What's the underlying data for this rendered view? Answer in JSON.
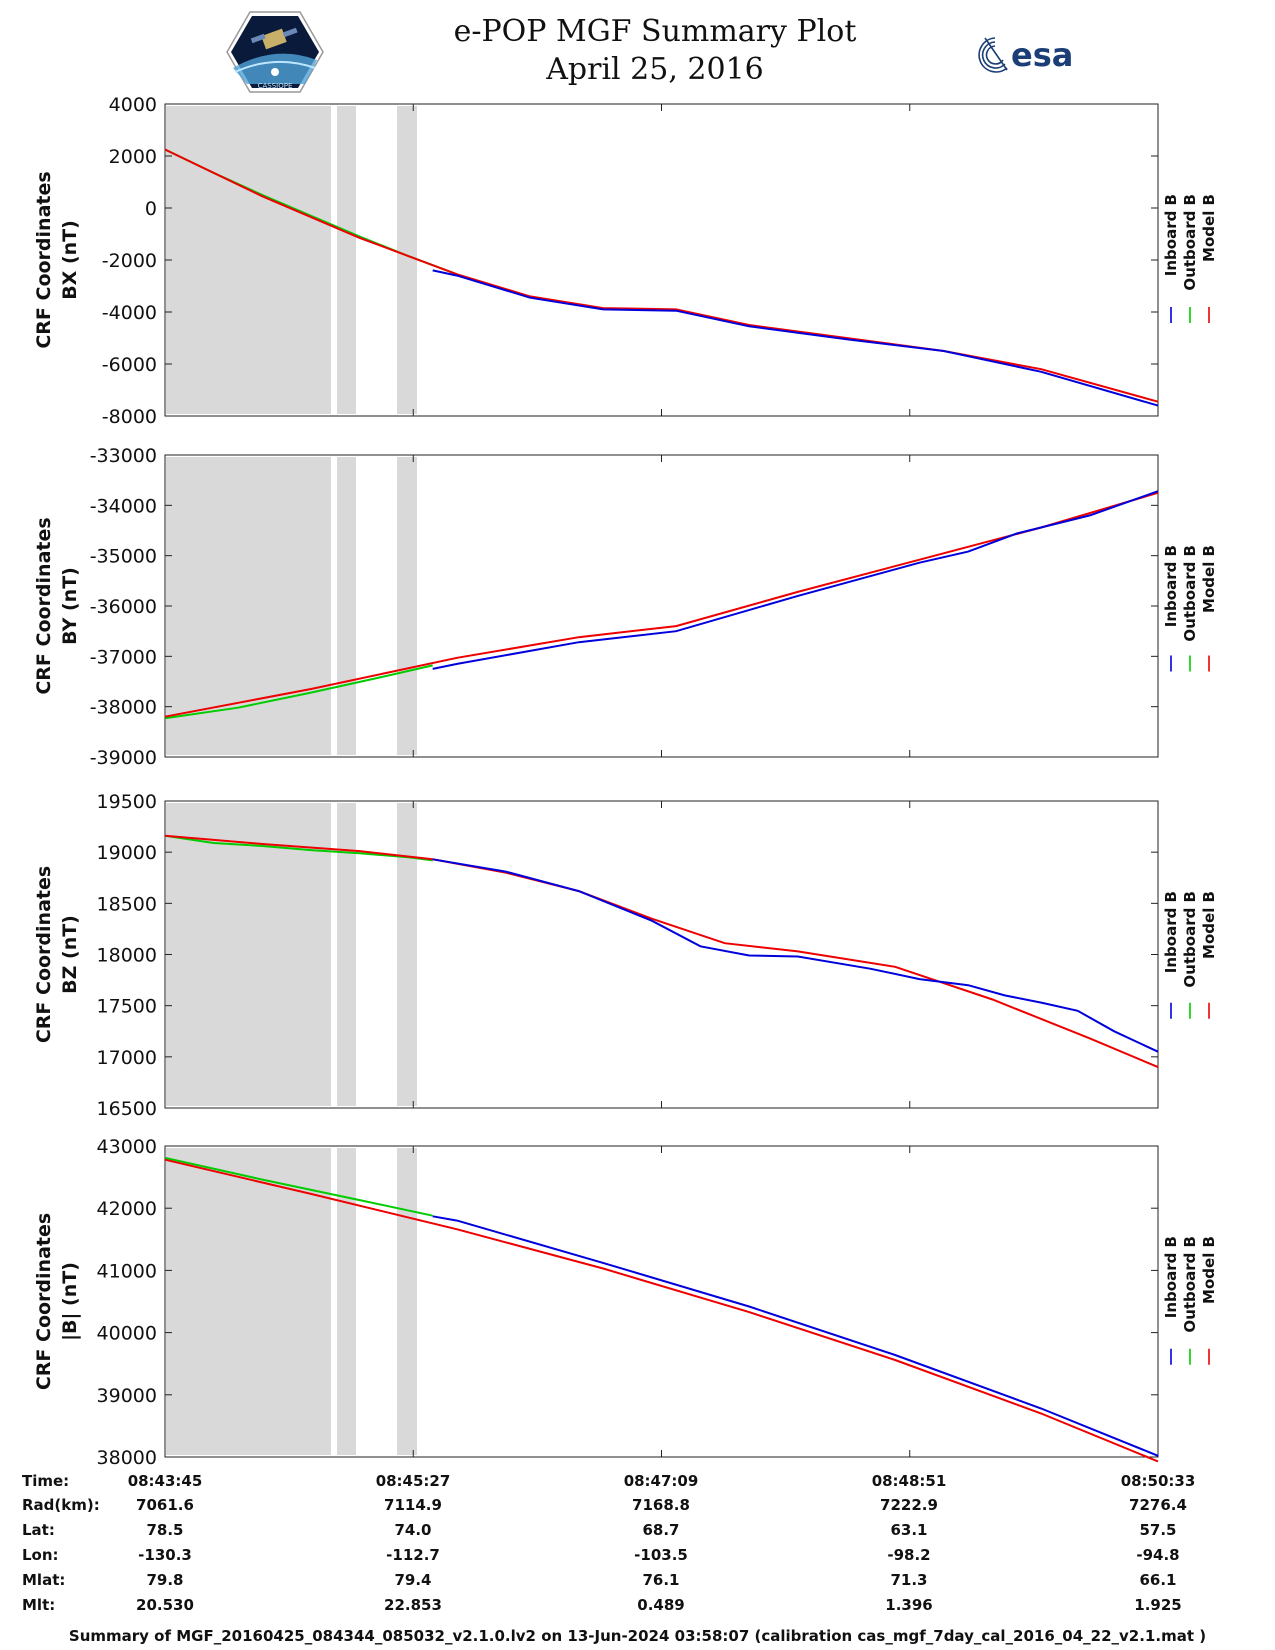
{
  "header": {
    "title_line1": "e-POP MGF Summary Plot",
    "title_line2": "April 25, 2016",
    "left_logo_text": "CASSIOPE",
    "right_logo_text": "esa"
  },
  "colors": {
    "inboard": "#0000dd",
    "outboard": "#00cc00",
    "model": "#ee0000",
    "gap": "#d9d9d9"
  },
  "chart_data": [
    {
      "type": "line",
      "id": "bx",
      "ylabel_line1": "CRF Coordinates",
      "ylabel_line2": "BX (nT)",
      "ylim": [
        -8000,
        4000
      ],
      "yticks": [
        -8000,
        -6000,
        -4000,
        -2000,
        0,
        2000,
        4000
      ],
      "xlim": [
        0,
        408
      ],
      "xticks": [
        0,
        102,
        204,
        306,
        408
      ],
      "legend": [
        "Inboard B",
        "Outboard B",
        "Model B"
      ],
      "series": [
        {
          "name": "Outboard B",
          "x": [
            0,
            20,
            40,
            60,
            80,
            100,
            120
          ],
          "y": [
            2250,
            1350,
            500,
            -300,
            -1100,
            -1850,
            -2550
          ]
        },
        {
          "name": "Model B",
          "x": [
            0,
            40,
            80,
            120,
            150,
            180,
            210,
            240,
            280,
            320,
            360,
            408
          ],
          "y": [
            2250,
            450,
            -1150,
            -2550,
            -3400,
            -3850,
            -3900,
            -4500,
            -5000,
            -5500,
            -6200,
            -7450
          ]
        },
        {
          "name": "Inboard B",
          "x": [
            110,
            120,
            150,
            180,
            210,
            240,
            280,
            320,
            360,
            408
          ],
          "y": [
            -2400,
            -2600,
            -3450,
            -3900,
            -3950,
            -4550,
            -5050,
            -5500,
            -6300,
            -7600
          ]
        }
      ]
    },
    {
      "type": "line",
      "id": "by",
      "ylabel_line1": "CRF Coordinates",
      "ylabel_line2": "BY (nT)",
      "ylim": [
        -39000,
        -33000
      ],
      "yticks": [
        -39000,
        -38000,
        -37000,
        -36000,
        -35000,
        -34000,
        -33000
      ],
      "xlim": [
        0,
        408
      ],
      "xticks": [
        0,
        102,
        204,
        306,
        408
      ],
      "legend": [
        "Inboard B",
        "Outboard B",
        "Model B"
      ],
      "series": [
        {
          "name": "Outboard B",
          "x": [
            0,
            30,
            60,
            90,
            110
          ],
          "y": [
            -38230,
            -38020,
            -37720,
            -37400,
            -37180
          ]
        },
        {
          "name": "Model B",
          "x": [
            0,
            60,
            120,
            170,
            210,
            260,
            310,
            360,
            408
          ],
          "y": [
            -38200,
            -37650,
            -37030,
            -36620,
            -36400,
            -35720,
            -35080,
            -34440,
            -33750
          ]
        },
        {
          "name": "Inboard B",
          "x": [
            110,
            120,
            170,
            210,
            260,
            310,
            330,
            350,
            380,
            408
          ],
          "y": [
            -37250,
            -37150,
            -36720,
            -36500,
            -35800,
            -35140,
            -34920,
            -34560,
            -34200,
            -33720
          ]
        }
      ]
    },
    {
      "type": "line",
      "id": "bz",
      "ylabel_line1": "CRF Coordinates",
      "ylabel_line2": "BZ (nT)",
      "ylim": [
        16500,
        19500
      ],
      "yticks": [
        16500,
        17000,
        17500,
        18000,
        18500,
        19000,
        19500
      ],
      "xlim": [
        0,
        408
      ],
      "xticks": [
        0,
        102,
        204,
        306,
        408
      ],
      "legend": [
        "Inboard B",
        "Outboard B",
        "Model B"
      ],
      "series": [
        {
          "name": "Outboard B",
          "x": [
            0,
            20,
            40,
            60,
            80,
            100,
            110
          ],
          "y": [
            19160,
            19090,
            19060,
            19020,
            18990,
            18950,
            18920
          ]
        },
        {
          "name": "Model B",
          "x": [
            0,
            40,
            80,
            110,
            140,
            170,
            200,
            230,
            260,
            300,
            340,
            380,
            408
          ],
          "y": [
            19160,
            19080,
            19010,
            18930,
            18800,
            18620,
            18350,
            18110,
            18030,
            17880,
            17560,
            17180,
            16900
          ]
        },
        {
          "name": "Inboard B",
          "x": [
            110,
            140,
            170,
            200,
            220,
            240,
            260,
            290,
            310,
            330,
            345,
            360,
            375,
            390,
            408
          ],
          "y": [
            18930,
            18810,
            18620,
            18330,
            18080,
            17990,
            17980,
            17860,
            17760,
            17700,
            17600,
            17530,
            17450,
            17250,
            17050
          ]
        }
      ]
    },
    {
      "type": "line",
      "id": "bmag",
      "ylabel_line1": "CRF Coordinates",
      "ylabel_line2": "|B| (nT)",
      "ylim": [
        38000,
        43000
      ],
      "yticks": [
        38000,
        39000,
        40000,
        41000,
        42000,
        43000
      ],
      "xlim": [
        0,
        408
      ],
      "xticks": [
        0,
        102,
        204,
        306,
        408
      ],
      "legend": [
        "Inboard B",
        "Outboard B",
        "Model B"
      ],
      "series": [
        {
          "name": "Outboard B",
          "x": [
            0,
            40,
            80,
            110
          ],
          "y": [
            42810,
            42460,
            42130,
            41880
          ]
        },
        {
          "name": "Model B",
          "x": [
            0,
            60,
            120,
            180,
            240,
            300,
            360,
            408
          ],
          "y": [
            42780,
            42230,
            41660,
            41030,
            40330,
            39560,
            38700,
            37930
          ]
        },
        {
          "name": "Inboard B",
          "x": [
            110,
            120,
            180,
            240,
            300,
            360,
            408
          ],
          "y": [
            41870,
            41800,
            41120,
            40420,
            39640,
            38780,
            38020
          ]
        }
      ]
    }
  ],
  "ephemeris": {
    "rows": [
      {
        "label": "Time:",
        "values": [
          "08:43:45",
          "08:45:27",
          "08:47:09",
          "08:48:51",
          "08:50:33"
        ]
      },
      {
        "label": "Rad(km):",
        "values": [
          "7061.6",
          "7114.9",
          "7168.8",
          "7222.9",
          "7276.4"
        ]
      },
      {
        "label": "Lat:",
        "values": [
          "78.5",
          "74.0",
          "68.7",
          "63.1",
          "57.5"
        ]
      },
      {
        "label": "Lon:",
        "values": [
          "-130.3",
          "-112.7",
          "-103.5",
          "-98.2",
          "-94.8"
        ]
      },
      {
        "label": "Mlat:",
        "values": [
          "79.8",
          "79.4",
          "76.1",
          "71.3",
          "66.1"
        ]
      },
      {
        "label": "Mlt:",
        "values": [
          "20.530",
          "22.853",
          "0.489",
          "1.396",
          "1.925"
        ]
      }
    ]
  },
  "footer": "Summary of MGF_20160425_084344_085032_v2.1.0.lv2 on 13-Jun-2024 03:58:07 (calibration cas_mgf_7day_cal_2016_04_22_v2.1.mat )"
}
